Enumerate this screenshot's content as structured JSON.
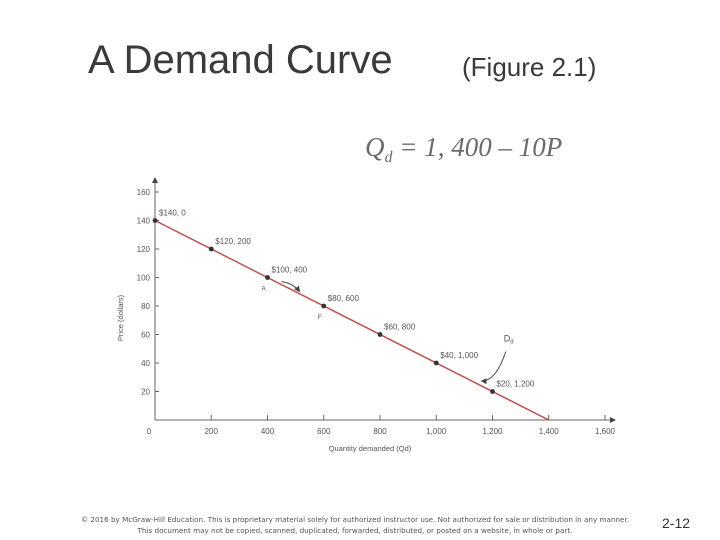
{
  "header": {
    "title": "A Demand Curve",
    "subtitle": "(Figure 2.1)",
    "equation_main": "Q",
    "equation_sub": "d",
    "equation_rest": " = 1, 400 – 10P"
  },
  "footer": {
    "copyright_line1": "© 2016 by McGraw-Hill Education. This is proprietary material solely for authorized instructor use. Not authorized for sale or distribution in any manner.",
    "copyright_line2": "This document may not be copied, scanned, duplicated, forwarded, distributed, or posted on a website, in whole or part.",
    "page_number": "2-12"
  },
  "chart_data": {
    "type": "line",
    "xlabel": "Quantity demanded (Qd)",
    "ylabel": "Price (dollars)",
    "xlim": [
      0,
      1600
    ],
    "ylim": [
      0,
      160
    ],
    "x_ticks": [
      0,
      200,
      400,
      600,
      800,
      1000,
      1200,
      1400,
      1600
    ],
    "x_tick_labels": [
      "0",
      "200",
      "400",
      "600",
      "800",
      "1,000",
      "1,200",
      "1,400",
      "1,600"
    ],
    "y_ticks": [
      20,
      40,
      60,
      80,
      100,
      120,
      140,
      160
    ],
    "y_tick_labels": [
      "20",
      "40",
      "60",
      "80",
      "100",
      "120",
      "140",
      "160"
    ],
    "series": [
      {
        "name": "D",
        "x": [
          0,
          1400
        ],
        "y": [
          140,
          0
        ]
      }
    ],
    "points": [
      {
        "x": 0,
        "y": 140,
        "label": "$140, 0"
      },
      {
        "x": 200,
        "y": 120,
        "label": "$120, 200"
      },
      {
        "x": 400,
        "y": 100,
        "label": "$100, 400",
        "point_name": "A"
      },
      {
        "x": 600,
        "y": 80,
        "label": "$80, 600",
        "point_name": "F"
      },
      {
        "x": 800,
        "y": 60,
        "label": "$60, 800"
      },
      {
        "x": 1000,
        "y": 40,
        "label": "$40, 1,000"
      },
      {
        "x": 1200,
        "y": 20,
        "label": "$20, 1,200"
      }
    ],
    "curve_label": "D",
    "curve_label_sub": "d",
    "line_color": "#c0504d",
    "point_color": "#333333",
    "grid": false
  }
}
